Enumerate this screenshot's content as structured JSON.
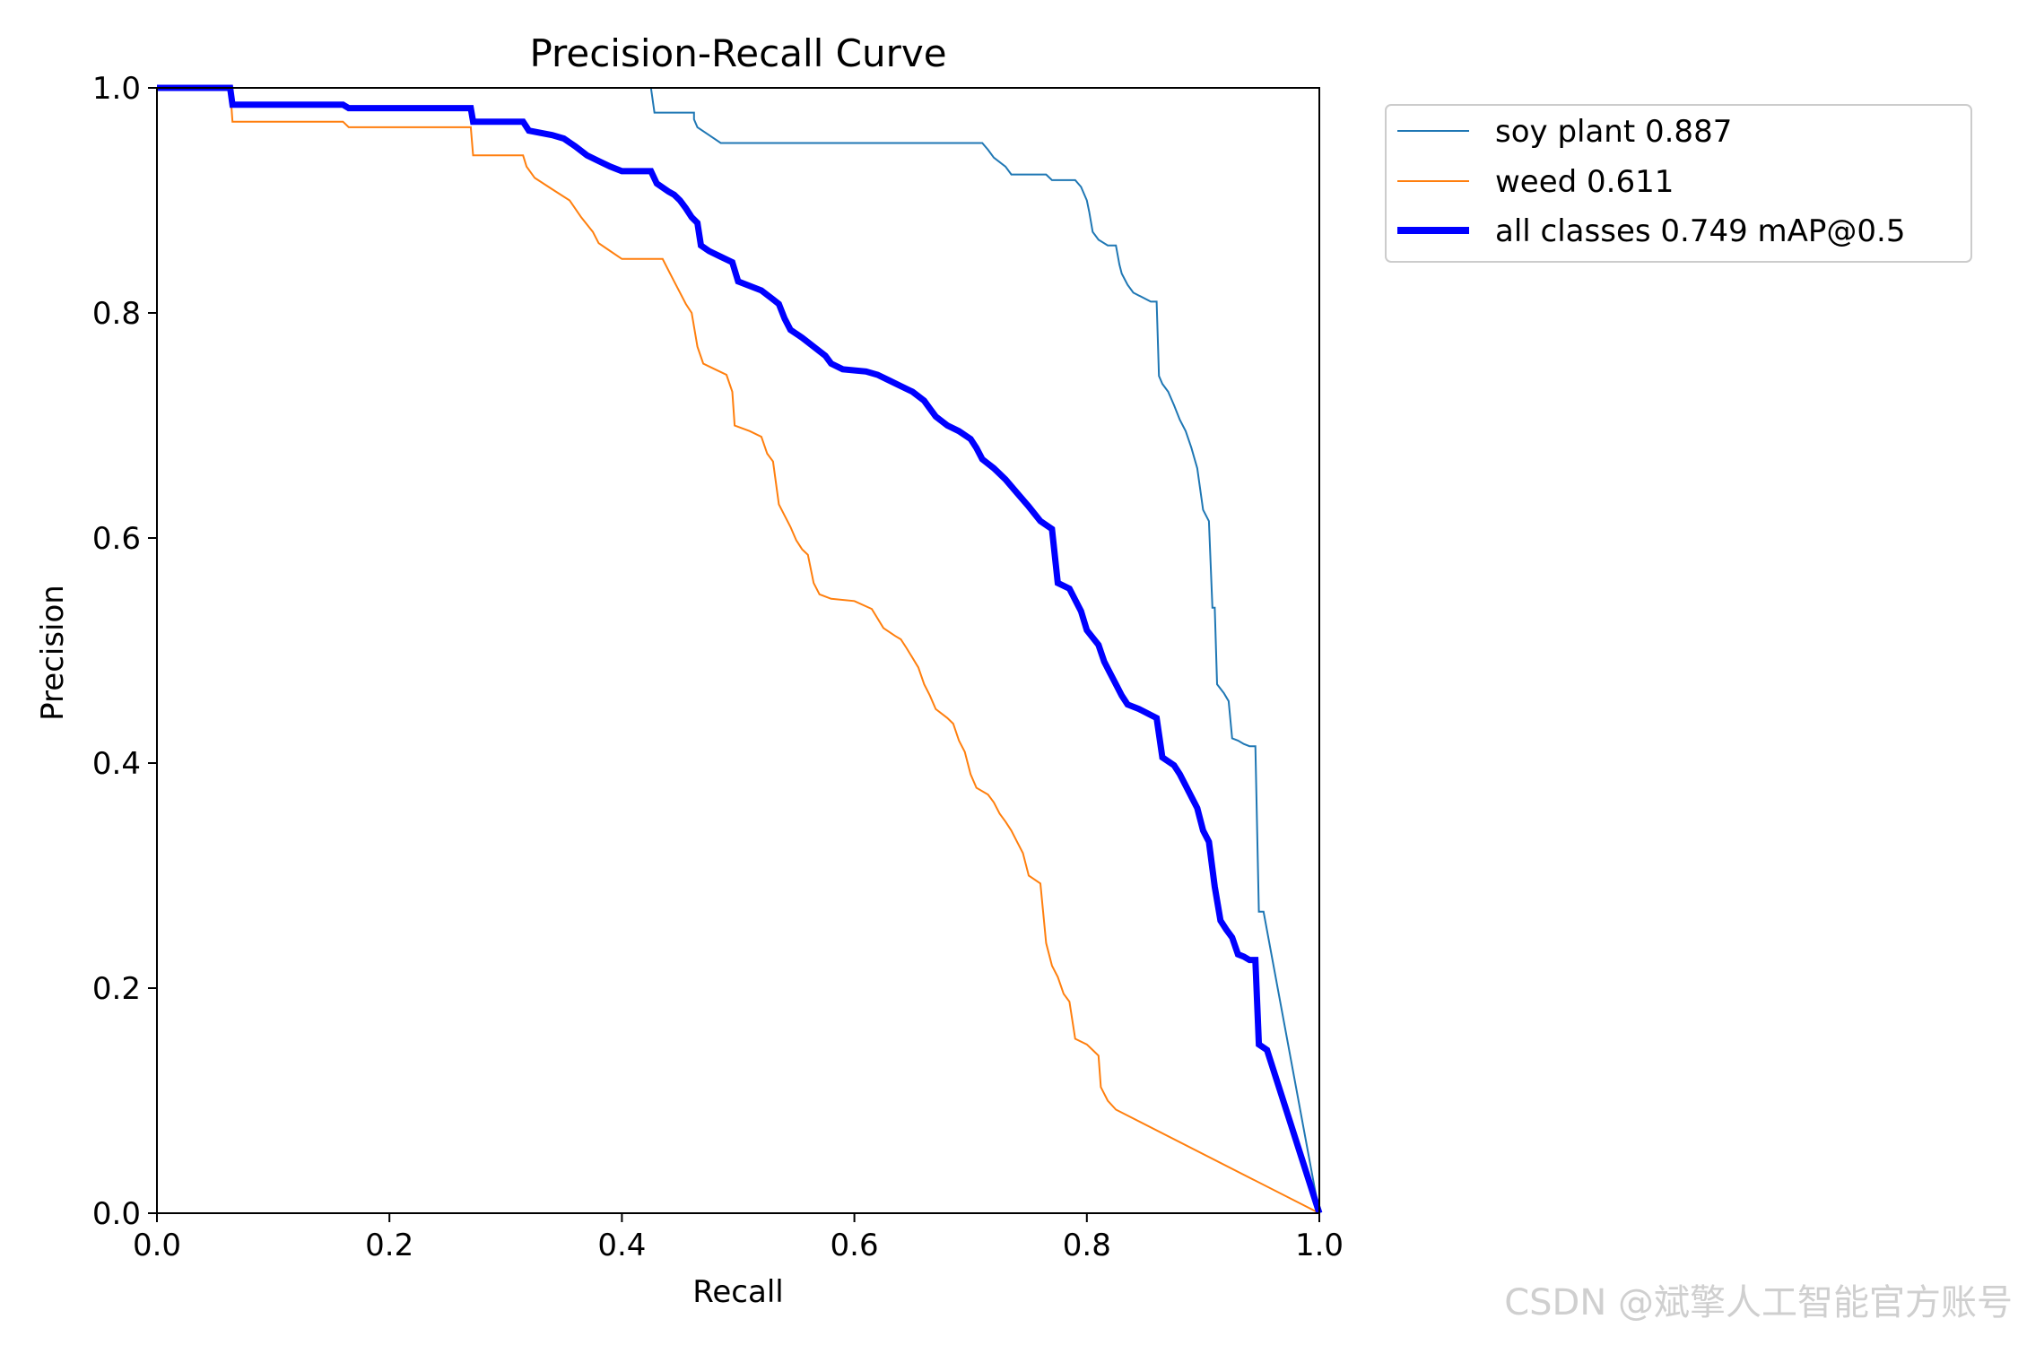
{
  "colors": {
    "soy": "#1f77b4",
    "weed": "#ff7f0e",
    "all": "#0000ff",
    "axis": "#000000",
    "legend_border": "#cccccc"
  },
  "chart_data": {
    "type": "line",
    "title": "Precision-Recall Curve",
    "xlabel": "Recall",
    "ylabel": "Precision",
    "xlim": [
      0,
      1
    ],
    "ylim": [
      0,
      1
    ],
    "xticks": [
      "0.0",
      "0.2",
      "0.4",
      "0.6",
      "0.8",
      "1.0"
    ],
    "yticks": [
      "0.0",
      "0.2",
      "0.4",
      "0.6",
      "0.8",
      "1.0"
    ],
    "grid": false,
    "legend_position": "outside-top-right",
    "series": [
      {
        "name": "soy plant 0.887",
        "color": "soy",
        "style": "thin",
        "points": [
          [
            0,
            1.0
          ],
          [
            0.425,
            1.0
          ],
          [
            0.428,
            0.978
          ],
          [
            0.462,
            0.978
          ],
          [
            0.462,
            0.972
          ],
          [
            0.465,
            0.965
          ],
          [
            0.475,
            0.958
          ],
          [
            0.485,
            0.951
          ],
          [
            0.71,
            0.951
          ],
          [
            0.715,
            0.945
          ],
          [
            0.72,
            0.938
          ],
          [
            0.73,
            0.93
          ],
          [
            0.735,
            0.923
          ],
          [
            0.765,
            0.923
          ],
          [
            0.77,
            0.918
          ],
          [
            0.79,
            0.918
          ],
          [
            0.795,
            0.912
          ],
          [
            0.8,
            0.9
          ],
          [
            0.802,
            0.89
          ],
          [
            0.805,
            0.872
          ],
          [
            0.81,
            0.865
          ],
          [
            0.818,
            0.86
          ],
          [
            0.825,
            0.86
          ],
          [
            0.828,
            0.843
          ],
          [
            0.83,
            0.835
          ],
          [
            0.835,
            0.825
          ],
          [
            0.84,
            0.818
          ],
          [
            0.855,
            0.81
          ],
          [
            0.86,
            0.81
          ],
          [
            0.862,
            0.744
          ],
          [
            0.865,
            0.737
          ],
          [
            0.87,
            0.73
          ],
          [
            0.875,
            0.718
          ],
          [
            0.88,
            0.705
          ],
          [
            0.885,
            0.695
          ],
          [
            0.89,
            0.68
          ],
          [
            0.895,
            0.662
          ],
          [
            0.9,
            0.625
          ],
          [
            0.905,
            0.615
          ],
          [
            0.908,
            0.538
          ],
          [
            0.91,
            0.538
          ],
          [
            0.912,
            0.47
          ],
          [
            0.918,
            0.462
          ],
          [
            0.922,
            0.455
          ],
          [
            0.925,
            0.422
          ],
          [
            0.93,
            0.42
          ],
          [
            0.935,
            0.417
          ],
          [
            0.94,
            0.415
          ],
          [
            0.945,
            0.415
          ],
          [
            0.948,
            0.268
          ],
          [
            0.952,
            0.268
          ],
          [
            1.0,
            0.0
          ]
        ]
      },
      {
        "name": "weed 0.611",
        "color": "weed",
        "style": "thin",
        "points": [
          [
            0,
            1.0
          ],
          [
            0.063,
            1.0
          ],
          [
            0.065,
            0.97
          ],
          [
            0.16,
            0.97
          ],
          [
            0.165,
            0.965
          ],
          [
            0.27,
            0.965
          ],
          [
            0.272,
            0.94
          ],
          [
            0.315,
            0.94
          ],
          [
            0.318,
            0.93
          ],
          [
            0.325,
            0.92
          ],
          [
            0.34,
            0.91
          ],
          [
            0.355,
            0.9
          ],
          [
            0.365,
            0.885
          ],
          [
            0.375,
            0.872
          ],
          [
            0.38,
            0.862
          ],
          [
            0.39,
            0.855
          ],
          [
            0.4,
            0.848
          ],
          [
            0.435,
            0.848
          ],
          [
            0.44,
            0.838
          ],
          [
            0.445,
            0.828
          ],
          [
            0.45,
            0.818
          ],
          [
            0.455,
            0.808
          ],
          [
            0.46,
            0.8
          ],
          [
            0.465,
            0.77
          ],
          [
            0.47,
            0.755
          ],
          [
            0.48,
            0.75
          ],
          [
            0.49,
            0.745
          ],
          [
            0.495,
            0.73
          ],
          [
            0.497,
            0.7
          ],
          [
            0.51,
            0.695
          ],
          [
            0.52,
            0.69
          ],
          [
            0.525,
            0.675
          ],
          [
            0.53,
            0.668
          ],
          [
            0.535,
            0.63
          ],
          [
            0.54,
            0.62
          ],
          [
            0.545,
            0.61
          ],
          [
            0.55,
            0.598
          ],
          [
            0.555,
            0.59
          ],
          [
            0.56,
            0.585
          ],
          [
            0.565,
            0.56
          ],
          [
            0.57,
            0.55
          ],
          [
            0.58,
            0.546
          ],
          [
            0.6,
            0.544
          ],
          [
            0.615,
            0.537
          ],
          [
            0.625,
            0.52
          ],
          [
            0.635,
            0.513
          ],
          [
            0.64,
            0.51
          ],
          [
            0.645,
            0.502
          ],
          [
            0.655,
            0.485
          ],
          [
            0.66,
            0.47
          ],
          [
            0.665,
            0.46
          ],
          [
            0.67,
            0.448
          ],
          [
            0.68,
            0.44
          ],
          [
            0.685,
            0.435
          ],
          [
            0.69,
            0.42
          ],
          [
            0.695,
            0.41
          ],
          [
            0.7,
            0.39
          ],
          [
            0.705,
            0.378
          ],
          [
            0.715,
            0.372
          ],
          [
            0.72,
            0.365
          ],
          [
            0.725,
            0.355
          ],
          [
            0.73,
            0.348
          ],
          [
            0.735,
            0.34
          ],
          [
            0.74,
            0.33
          ],
          [
            0.745,
            0.32
          ],
          [
            0.75,
            0.3
          ],
          [
            0.76,
            0.293
          ],
          [
            0.765,
            0.24
          ],
          [
            0.77,
            0.22
          ],
          [
            0.775,
            0.21
          ],
          [
            0.78,
            0.195
          ],
          [
            0.785,
            0.188
          ],
          [
            0.79,
            0.155
          ],
          [
            0.8,
            0.15
          ],
          [
            0.805,
            0.145
          ],
          [
            0.81,
            0.14
          ],
          [
            0.812,
            0.112
          ],
          [
            0.818,
            0.1
          ],
          [
            0.825,
            0.092
          ],
          [
            1.0,
            0.0
          ]
        ]
      },
      {
        "name": "all classes 0.749 mAP@0.5",
        "color": "all",
        "style": "thick",
        "points": [
          [
            0,
            1.0
          ],
          [
            0.063,
            1.0
          ],
          [
            0.065,
            0.985
          ],
          [
            0.16,
            0.985
          ],
          [
            0.165,
            0.982
          ],
          [
            0.27,
            0.982
          ],
          [
            0.272,
            0.97
          ],
          [
            0.315,
            0.97
          ],
          [
            0.32,
            0.962
          ],
          [
            0.34,
            0.958
          ],
          [
            0.35,
            0.955
          ],
          [
            0.36,
            0.948
          ],
          [
            0.37,
            0.94
          ],
          [
            0.38,
            0.935
          ],
          [
            0.39,
            0.93
          ],
          [
            0.4,
            0.926
          ],
          [
            0.425,
            0.926
          ],
          [
            0.43,
            0.915
          ],
          [
            0.44,
            0.908
          ],
          [
            0.445,
            0.905
          ],
          [
            0.45,
            0.9
          ],
          [
            0.455,
            0.893
          ],
          [
            0.46,
            0.885
          ],
          [
            0.465,
            0.88
          ],
          [
            0.468,
            0.86
          ],
          [
            0.475,
            0.855
          ],
          [
            0.485,
            0.85
          ],
          [
            0.495,
            0.845
          ],
          [
            0.5,
            0.828
          ],
          [
            0.52,
            0.82
          ],
          [
            0.53,
            0.812
          ],
          [
            0.535,
            0.808
          ],
          [
            0.54,
            0.795
          ],
          [
            0.545,
            0.785
          ],
          [
            0.555,
            0.778
          ],
          [
            0.565,
            0.77
          ],
          [
            0.575,
            0.762
          ],
          [
            0.58,
            0.755
          ],
          [
            0.59,
            0.75
          ],
          [
            0.61,
            0.748
          ],
          [
            0.62,
            0.745
          ],
          [
            0.63,
            0.74
          ],
          [
            0.64,
            0.735
          ],
          [
            0.65,
            0.73
          ],
          [
            0.66,
            0.722
          ],
          [
            0.665,
            0.715
          ],
          [
            0.67,
            0.708
          ],
          [
            0.68,
            0.7
          ],
          [
            0.69,
            0.695
          ],
          [
            0.7,
            0.688
          ],
          [
            0.705,
            0.68
          ],
          [
            0.71,
            0.67
          ],
          [
            0.72,
            0.662
          ],
          [
            0.73,
            0.652
          ],
          [
            0.74,
            0.64
          ],
          [
            0.75,
            0.628
          ],
          [
            0.76,
            0.615
          ],
          [
            0.77,
            0.608
          ],
          [
            0.775,
            0.56
          ],
          [
            0.785,
            0.555
          ],
          [
            0.79,
            0.545
          ],
          [
            0.795,
            0.535
          ],
          [
            0.8,
            0.518
          ],
          [
            0.81,
            0.505
          ],
          [
            0.815,
            0.49
          ],
          [
            0.82,
            0.48
          ],
          [
            0.825,
            0.47
          ],
          [
            0.83,
            0.46
          ],
          [
            0.835,
            0.452
          ],
          [
            0.845,
            0.448
          ],
          [
            0.86,
            0.44
          ],
          [
            0.865,
            0.405
          ],
          [
            0.875,
            0.398
          ],
          [
            0.88,
            0.39
          ],
          [
            0.885,
            0.38
          ],
          [
            0.89,
            0.37
          ],
          [
            0.895,
            0.36
          ],
          [
            0.9,
            0.34
          ],
          [
            0.905,
            0.33
          ],
          [
            0.91,
            0.29
          ],
          [
            0.915,
            0.26
          ],
          [
            0.92,
            0.252
          ],
          [
            0.925,
            0.245
          ],
          [
            0.93,
            0.23
          ],
          [
            0.935,
            0.228
          ],
          [
            0.94,
            0.225
          ],
          [
            0.945,
            0.225
          ],
          [
            0.948,
            0.15
          ],
          [
            0.955,
            0.145
          ],
          [
            1.0,
            0.0
          ]
        ]
      }
    ]
  },
  "watermark": "CSDN @斌擎人工智能官方账号"
}
